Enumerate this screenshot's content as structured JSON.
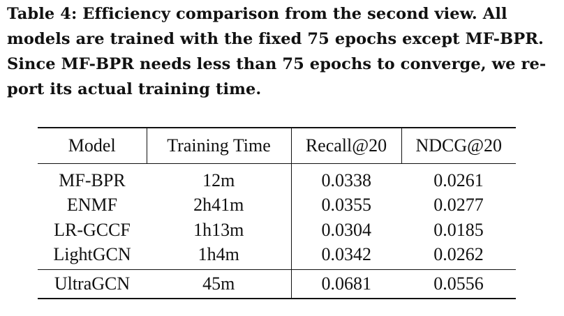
{
  "caption": {
    "lines": [
      "Table 4: Efficiency comparison from the second view. All",
      "models are trained with the fixed 75 epochs except MF-BPR.",
      "Since MF-BPR needs less than 75 epochs to converge, we re-",
      "port its actual training time."
    ]
  },
  "table": {
    "headers": [
      "Model",
      "Training Time",
      "Recall@20",
      "NDCG@20"
    ],
    "rows": [
      {
        "model": "MF-BPR",
        "time": "12m",
        "recall": "0.0338",
        "ndcg": "0.0261"
      },
      {
        "model": "ENMF",
        "time": "2h41m",
        "recall": "0.0355",
        "ndcg": "0.0277"
      },
      {
        "model": "LR-GCCF",
        "time": "1h13m",
        "recall": "0.0304",
        "ndcg": "0.0185"
      },
      {
        "model": "LightGCN",
        "time": "1h4m",
        "recall": "0.0342",
        "ndcg": "0.0262"
      },
      {
        "model": "UltraGCN",
        "time": "45m",
        "recall": "0.0681",
        "ndcg": "0.0556"
      }
    ]
  }
}
